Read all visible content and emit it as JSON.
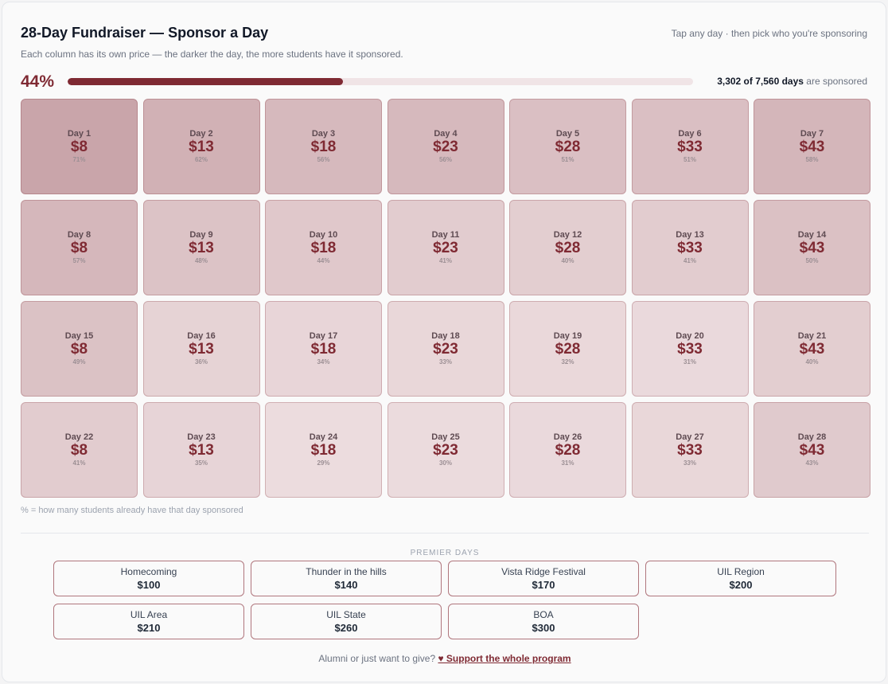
{
  "header": {
    "title": "28-Day Fundraiser — Sponsor a Day",
    "hint": "Tap any day · then pick who you're sponsoring",
    "subtitle": "Each column has its own price — the darker the day, the more students have it sponsored."
  },
  "progress": {
    "percent_label": "44%",
    "fraction": 0.44,
    "count_text": "3,302 of 7,560 days",
    "suffix": "are sponsored"
  },
  "days": [
    {
      "label": "Day 1",
      "price": "$8",
      "pct": "71%",
      "level": 0.71
    },
    {
      "label": "Day 2",
      "price": "$13",
      "pct": "62%",
      "level": 0.62
    },
    {
      "label": "Day 3",
      "price": "$18",
      "pct": "56%",
      "level": 0.56
    },
    {
      "label": "Day 4",
      "price": "$23",
      "pct": "56%",
      "level": 0.56
    },
    {
      "label": "Day 5",
      "price": "$28",
      "pct": "51%",
      "level": 0.51
    },
    {
      "label": "Day 6",
      "price": "$33",
      "pct": "51%",
      "level": 0.51
    },
    {
      "label": "Day 7",
      "price": "$43",
      "pct": "58%",
      "level": 0.58
    },
    {
      "label": "Day 8",
      "price": "$8",
      "pct": "57%",
      "level": 0.57
    },
    {
      "label": "Day 9",
      "price": "$13",
      "pct": "48%",
      "level": 0.48
    },
    {
      "label": "Day 10",
      "price": "$18",
      "pct": "44%",
      "level": 0.44
    },
    {
      "label": "Day 11",
      "price": "$23",
      "pct": "41%",
      "level": 0.41
    },
    {
      "label": "Day 12",
      "price": "$28",
      "pct": "40%",
      "level": 0.4
    },
    {
      "label": "Day 13",
      "price": "$33",
      "pct": "41%",
      "level": 0.41
    },
    {
      "label": "Day 14",
      "price": "$43",
      "pct": "50%",
      "level": 0.5
    },
    {
      "label": "Day 15",
      "price": "$8",
      "pct": "49%",
      "level": 0.49
    },
    {
      "label": "Day 16",
      "price": "$13",
      "pct": "36%",
      "level": 0.36
    },
    {
      "label": "Day 17",
      "price": "$18",
      "pct": "34%",
      "level": 0.34
    },
    {
      "label": "Day 18",
      "price": "$23",
      "pct": "33%",
      "level": 0.33
    },
    {
      "label": "Day 19",
      "price": "$28",
      "pct": "32%",
      "level": 0.32
    },
    {
      "label": "Day 20",
      "price": "$33",
      "pct": "31%",
      "level": 0.31
    },
    {
      "label": "Day 21",
      "price": "$43",
      "pct": "40%",
      "level": 0.4
    },
    {
      "label": "Day 22",
      "price": "$8",
      "pct": "41%",
      "level": 0.41
    },
    {
      "label": "Day 23",
      "price": "$13",
      "pct": "35%",
      "level": 0.35
    },
    {
      "label": "Day 24",
      "price": "$18",
      "pct": "29%",
      "level": 0.29
    },
    {
      "label": "Day 25",
      "price": "$23",
      "pct": "30%",
      "level": 0.3
    },
    {
      "label": "Day 26",
      "price": "$28",
      "pct": "31%",
      "level": 0.31
    },
    {
      "label": "Day 27",
      "price": "$33",
      "pct": "33%",
      "level": 0.33
    },
    {
      "label": "Day 28",
      "price": "$43",
      "pct": "43%",
      "level": 0.43
    }
  ],
  "legend_note": "% = how many students already have that day sponsored",
  "premier": {
    "heading": "PREMIER DAYS",
    "items": [
      {
        "name": "Homecoming",
        "price": "$100"
      },
      {
        "name": "Thunder in the hills",
        "price": "$140"
      },
      {
        "name": "Vista Ridge Festival",
        "price": "$170"
      },
      {
        "name": "UIL Region",
        "price": "$200"
      },
      {
        "name": "UIL Area",
        "price": "$210"
      },
      {
        "name": "UIL State",
        "price": "$260"
      },
      {
        "name": "BOA",
        "price": "$300"
      }
    ]
  },
  "footer": {
    "prefix": "Alumni or just want to give?",
    "link_icon": "heart-icon",
    "link_text": "♥ Support the whole program"
  },
  "colors": {
    "accent": "#7f2a33",
    "tile_base": "#ecdcde",
    "tile_dark": "#c9a5aa"
  }
}
